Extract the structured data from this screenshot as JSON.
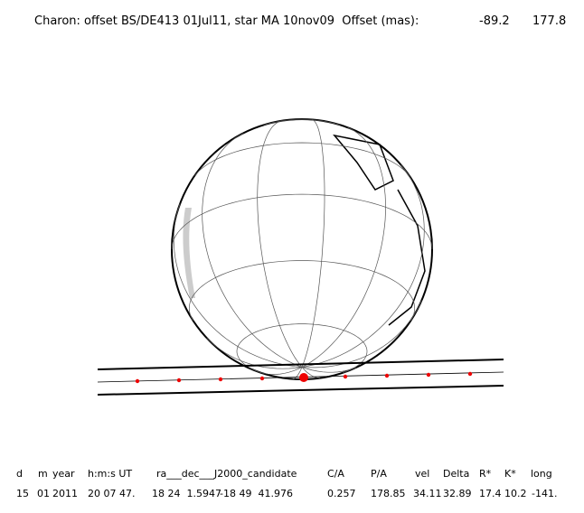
{
  "header": {
    "title": "Charon: offset BS/DE413 01Jul11, star MA 10nov09  Offset (mas):",
    "offset_1": "-89.2",
    "offset_2": "177.8"
  },
  "table": {
    "columns": [
      "d",
      "m",
      "year",
      "h:m:s UT",
      "ra___dec___J2000_candidate",
      "C/A",
      "P/A",
      "vel",
      "Delta",
      "R*",
      "K*",
      "long"
    ],
    "row": [
      "15",
      "01",
      "2011",
      "20 07 47.",
      "18 24  1.5947",
      "-18 49  41.976",
      "0.257",
      "178.85",
      "34.11",
      "32.89",
      "17.4",
      "10.2",
      "-141."
    ]
  }
}
